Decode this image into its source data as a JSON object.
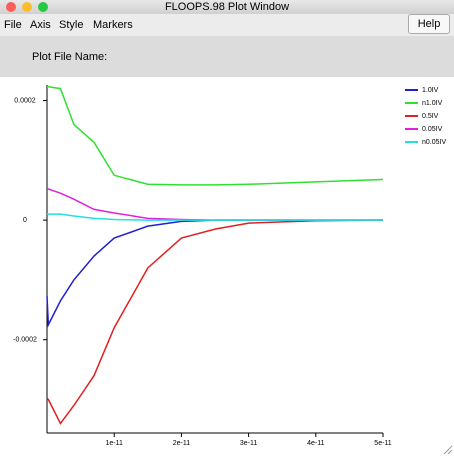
{
  "window_title": "FLOOPS.98 Plot Window",
  "menu": [
    "File",
    "Axis",
    "Style",
    "Markers"
  ],
  "help_button": "Help",
  "plot_file_label": "Plot File Name:",
  "chart_data": {
    "type": "line",
    "x": [
      0,
      2e-13,
      2e-12,
      4e-12,
      7e-12,
      1e-11,
      1.5e-11,
      2e-11,
      2.5e-11,
      3e-11,
      4e-11,
      5e-11
    ],
    "series": [
      {
        "name": "1.0IV",
        "color": "#2020d0",
        "values": [
          -0.000127,
          -0.000175,
          -0.000135,
          -0.0001,
          -6e-05,
          -3e-05,
          -1e-05,
          -2e-06,
          0,
          0,
          0,
          0
        ]
      },
      {
        "name": "n1.0IV",
        "color": "#30e030",
        "values": [
          0.000223,
          0.000223,
          0.00022,
          0.00016,
          0.00013,
          7.5e-05,
          6e-05,
          5.9e-05,
          5.9e-05,
          6e-05,
          6.4e-05,
          6.8e-05
        ]
      },
      {
        "name": "0.5IV",
        "color": "#e02020",
        "values": [
          -0.000298,
          -0.0003,
          -0.00034,
          -0.00031,
          -0.00026,
          -0.00018,
          -8e-05,
          -3e-05,
          -1.5e-05,
          -5e-06,
          -1e-06,
          0
        ]
      },
      {
        "name": "0.05IV",
        "color": "#e020e0",
        "values": [
          5.2e-05,
          5.2e-05,
          4.5e-05,
          3.5e-05,
          1.8e-05,
          1.2e-05,
          3e-06,
          1e-06,
          0,
          0,
          0,
          0
        ]
      },
      {
        "name": "n0.05IV",
        "color": "#20e0e0",
        "values": [
          1e-05,
          1e-05,
          1e-05,
          7e-06,
          3e-06,
          1e-06,
          0,
          0,
          0,
          0,
          0,
          0
        ]
      }
    ],
    "xlim": [
      0,
      5e-11
    ],
    "ylim": [
      -0.000356,
      0.000226
    ],
    "xticks": [
      1e-11,
      2e-11,
      3e-11,
      4e-11,
      5e-11
    ],
    "yticks": [
      -0.0002,
      0,
      0.0002
    ]
  }
}
